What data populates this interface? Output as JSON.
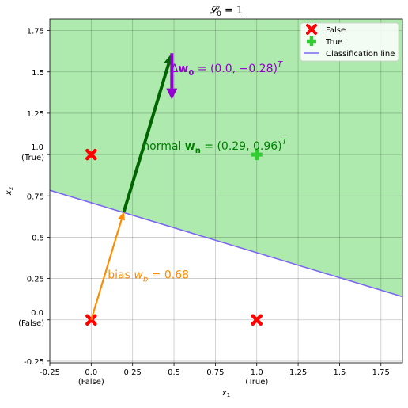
{
  "chart_data": {
    "type": "scatter",
    "title": "𝓛",
    "title_subscript": "0",
    "title_suffix": " = 1",
    "xlabel": "x",
    "xlabel_sub": "1",
    "ylabel": "x",
    "ylabel_sub": "2",
    "xlim": [
      -0.25,
      1.88
    ],
    "ylim": [
      -0.26,
      1.82
    ],
    "grid": true,
    "x_ticks": [
      {
        "value": -0.25,
        "label": "-0.25",
        "sub": ""
      },
      {
        "value": 0,
        "label": "0.0",
        "sub": "(False)"
      },
      {
        "value": 0.25,
        "label": "0.25",
        "sub": ""
      },
      {
        "value": 0.5,
        "label": "0.5",
        "sub": ""
      },
      {
        "value": 0.75,
        "label": "0.75",
        "sub": ""
      },
      {
        "value": 1,
        "label": "1.0",
        "sub": "(True)"
      },
      {
        "value": 1.25,
        "label": "1.25",
        "sub": ""
      },
      {
        "value": 1.5,
        "label": "1.5",
        "sub": ""
      },
      {
        "value": 1.75,
        "label": "1.75",
        "sub": ""
      }
    ],
    "y_ticks": [
      {
        "value": -0.25,
        "label": "-0.25",
        "sub": ""
      },
      {
        "value": 0,
        "label": "0.0",
        "sub": "(False)"
      },
      {
        "value": 0.25,
        "label": "0.25",
        "sub": ""
      },
      {
        "value": 0.5,
        "label": "0.5",
        "sub": ""
      },
      {
        "value": 0.75,
        "label": "0.75",
        "sub": ""
      },
      {
        "value": 1,
        "label": "1.0",
        "sub": "(True)"
      },
      {
        "value": 1.25,
        "label": "1.25",
        "sub": ""
      },
      {
        "value": 1.5,
        "label": "1.5",
        "sub": ""
      },
      {
        "value": 1.75,
        "label": "1.75",
        "sub": ""
      }
    ],
    "series": [
      {
        "name": "False",
        "marker": "x",
        "color": "#ff0000",
        "points": [
          [
            0,
            0
          ],
          [
            0,
            1
          ],
          [
            1,
            0
          ]
        ]
      },
      {
        "name": "True",
        "marker": "plus",
        "color": "#33cc33",
        "points": [
          [
            1,
            1
          ]
        ]
      }
    ],
    "classification_line": {
      "name": "Classification line",
      "color": "#7b68ee",
      "normal": [
        0.29,
        0.96
      ],
      "offset": 0.68
    },
    "region_color": "#aeeaae",
    "legend": {
      "position": "top-right",
      "entries": [
        {
          "label": "False",
          "marker": "x",
          "color": "#ff0000"
        },
        {
          "label": "True",
          "marker": "plus",
          "color": "#33cc33"
        },
        {
          "label": "Classification line",
          "marker": "line",
          "color": "#7b68ee"
        }
      ]
    },
    "vectors": [
      {
        "name": "bias",
        "from": [
          0,
          0
        ],
        "to": [
          0.197,
          0.653
        ],
        "color": "#ff8c00"
      },
      {
        "name": "normal",
        "from": [
          0.197,
          0.653
        ],
        "to": [
          0.487,
          1.613
        ],
        "color": "#006400"
      },
      {
        "name": "delta",
        "from": [
          0.487,
          1.613
        ],
        "to": [
          0.487,
          1.333
        ],
        "color": "#9400d3"
      }
    ],
    "annotations": {
      "bias": {
        "text": "bias ",
        "math": "w",
        "sub": "b",
        "suffix": " = 0.68",
        "color": "#ff8c00",
        "anchor": [
          0.1,
          0.25
        ]
      },
      "normal": {
        "text": "normal ",
        "math": "w",
        "sub": "n",
        "suffix": " = (0.29, 0.96)",
        "sup": "T",
        "color": "#008000",
        "anchor": [
          0.31,
          1.03
        ]
      },
      "delta": {
        "text": "Δ",
        "math": "w",
        "sub": "0",
        "suffix": " = (0.0, −0.28)",
        "sup": "T",
        "color": "#9400d3",
        "anchor": [
          0.48,
          1.5
        ]
      }
    }
  }
}
